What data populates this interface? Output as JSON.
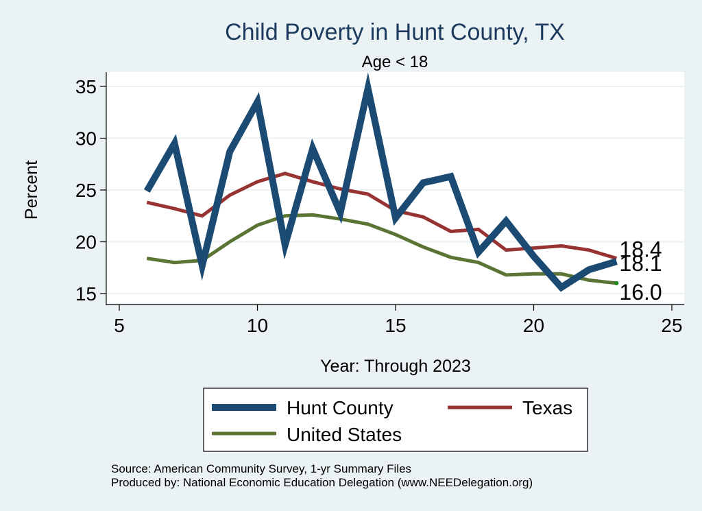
{
  "chart_data": {
    "type": "line",
    "title": "Child Poverty in Hunt County, TX",
    "subtitle": "Age < 18",
    "xlabel": "Year: Through 2023",
    "ylabel": "Percent",
    "xlim": [
      5,
      25
    ],
    "ylim": [
      14.5,
      36.3
    ],
    "x_ticks": [
      5,
      10,
      15,
      20,
      25
    ],
    "y_ticks": [
      15,
      20,
      25,
      30,
      35
    ],
    "grid": true,
    "legend_position": "bottom",
    "x": [
      6,
      7,
      8,
      9,
      10,
      11,
      12,
      13,
      14,
      15,
      16,
      17,
      18,
      19,
      20,
      21,
      22,
      23
    ],
    "series": [
      {
        "name": "Hunt County",
        "color": "#1b4a72",
        "values": [
          24.9,
          29.5,
          17.7,
          28.7,
          33.5,
          19.7,
          29.0,
          22.8,
          34.8,
          22.3,
          25.7,
          26.3,
          19.0,
          22.0,
          18.6,
          15.6,
          17.3,
          18.1
        ],
        "end_label": "18.1"
      },
      {
        "name": "Texas",
        "color": "#983334",
        "values": [
          23.8,
          23.2,
          22.5,
          24.5,
          25.8,
          26.6,
          25.8,
          25.1,
          24.6,
          23.0,
          22.4,
          21.0,
          21.2,
          19.2,
          19.4,
          19.6,
          19.2,
          18.4
        ],
        "end_label": "18.4"
      },
      {
        "name": "United States",
        "color": "#5a7433",
        "values": [
          18.4,
          18.0,
          18.2,
          20.0,
          21.6,
          22.5,
          22.6,
          22.2,
          21.7,
          20.7,
          19.5,
          18.5,
          18.0,
          16.8,
          16.9,
          16.9,
          16.3,
          16.0
        ],
        "end_label": "16.0"
      }
    ],
    "notes": [
      "Source: American Community Survey, 1-yr Summary Files",
      "Produced by: National Economic Education Delegation (www.NEEDelegation.org)"
    ]
  }
}
